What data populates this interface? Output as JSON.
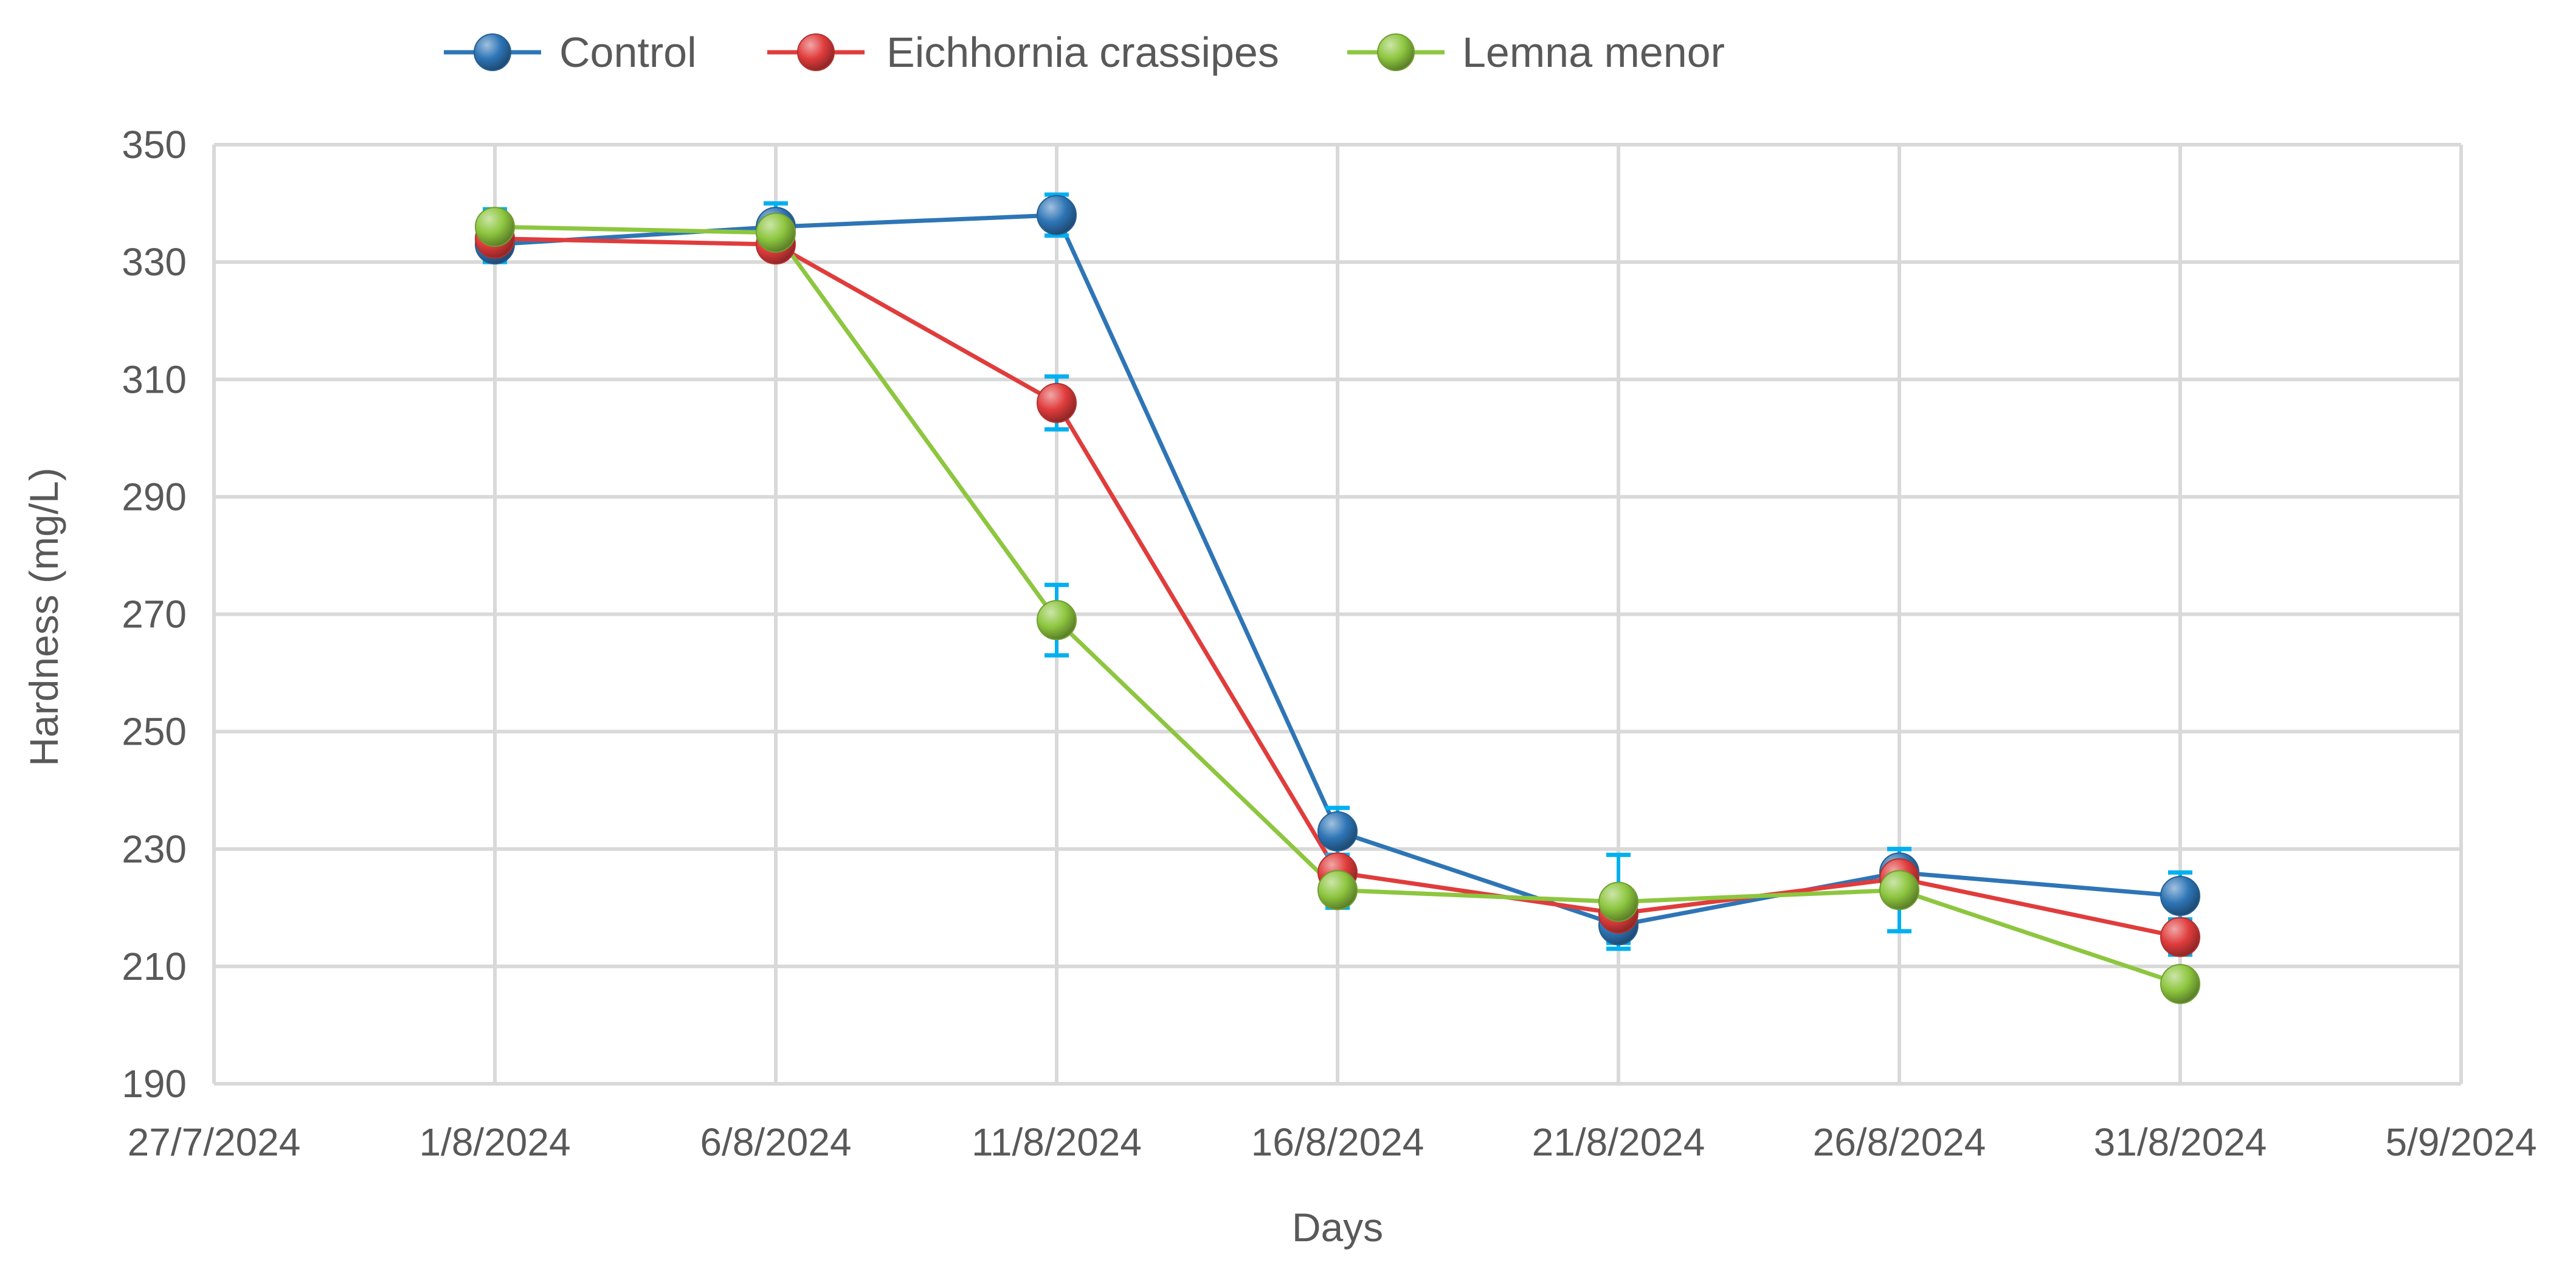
{
  "chart_data": {
    "type": "line",
    "title": "",
    "xlabel": "Days",
    "ylabel": "Hardness (mg/L)",
    "x_type": "date",
    "xlim": [
      "27/7/2024",
      "5/9/2024"
    ],
    "x_ticks": [
      "27/7/2024",
      "1/8/2024",
      "6/8/2024",
      "11/8/2024",
      "16/8/2024",
      "21/8/2024",
      "26/8/2024",
      "31/8/2024",
      "5/9/2024"
    ],
    "ylim": [
      190,
      350
    ],
    "y_ticks": [
      190,
      210,
      230,
      250,
      270,
      290,
      310,
      330,
      350
    ],
    "grid": true,
    "legend_position": "top",
    "x": [
      "1/8/2024",
      "6/8/2024",
      "11/8/2024",
      "16/8/2024",
      "21/8/2024",
      "26/8/2024",
      "31/8/2024"
    ],
    "series": [
      {
        "name": "Control",
        "color": "#2E75B6",
        "values": [
          333,
          336,
          338,
          233,
          217,
          226,
          222
        ],
        "errors": [
          3,
          4,
          3.5,
          4,
          3,
          4,
          4
        ]
      },
      {
        "name": "Eichhornia crassipes",
        "color": "#E03C3C",
        "values": [
          334,
          333,
          306,
          226,
          219,
          225,
          215
        ],
        "errors": [
          2,
          2,
          4.5,
          3,
          3,
          3,
          3
        ]
      },
      {
        "name": "Lemna menor",
        "color": "#8DC63F",
        "values": [
          336,
          335,
          269,
          223,
          221,
          223,
          207
        ],
        "errors": [
          3,
          3,
          6,
          3,
          8,
          7,
          2
        ]
      }
    ],
    "error_bar_color": "#00B0F0"
  }
}
